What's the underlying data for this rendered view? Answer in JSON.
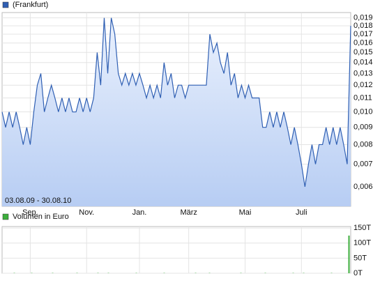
{
  "chart_data": [
    {
      "type": "area",
      "date_range": "03.08.09 - 30.08.10",
      "log_scale": true,
      "grid": true,
      "x": [
        0,
        1,
        2,
        3,
        4,
        5,
        6,
        7,
        8,
        9,
        10,
        11,
        12,
        13,
        14,
        15,
        16,
        17,
        18,
        19,
        20,
        21,
        22,
        23,
        24,
        25,
        26,
        27,
        28,
        29,
        30,
        31,
        32,
        33,
        34,
        35,
        36,
        37,
        38,
        39,
        40,
        41,
        42,
        43,
        44,
        45,
        46,
        47,
        48,
        49,
        50,
        51,
        52,
        53,
        54,
        55,
        56,
        57,
        58,
        59,
        60,
        61,
        62,
        63,
        64,
        65,
        66,
        67,
        68,
        69,
        70,
        71,
        72,
        73,
        74,
        75,
        76,
        77,
        78,
        79,
        80,
        81,
        82,
        83,
        84,
        85,
        86,
        87,
        88,
        89,
        90,
        91,
        92,
        93,
        94,
        95,
        96,
        97,
        98,
        99
      ],
      "xlim": [
        0,
        99
      ],
      "xticks": [
        {
          "value": 8,
          "label": "Sep."
        },
        {
          "value": 24,
          "label": "Nov."
        },
        {
          "value": 39,
          "label": "Jan."
        },
        {
          "value": 53,
          "label": "März"
        },
        {
          "value": 69,
          "label": "Mai"
        },
        {
          "value": 85,
          "label": "Juli"
        }
      ],
      "ylim": [
        0.00525,
        0.0197
      ],
      "yticks": [
        {
          "value": 0.006,
          "label": "0,006"
        },
        {
          "value": 0.007,
          "label": "0,007"
        },
        {
          "value": 0.008,
          "label": "0,008"
        },
        {
          "value": 0.009,
          "label": "0,009"
        },
        {
          "value": 0.01,
          "label": "0,010"
        },
        {
          "value": 0.011,
          "label": "0,011"
        },
        {
          "value": 0.012,
          "label": "0,012"
        },
        {
          "value": 0.013,
          "label": "0,013"
        },
        {
          "value": 0.014,
          "label": "0,014"
        },
        {
          "value": 0.015,
          "label": "0,015"
        },
        {
          "value": 0.016,
          "label": "0,016"
        },
        {
          "value": 0.017,
          "label": "0,017"
        },
        {
          "value": 0.018,
          "label": "0,018"
        },
        {
          "value": 0.019,
          "label": "0,019"
        }
      ],
      "series": [
        {
          "name": "(Frankfurt)",
          "color": "#2f5fb3",
          "values": [
            0.01,
            0.009,
            0.01,
            0.009,
            0.01,
            0.009,
            0.008,
            0.009,
            0.008,
            0.01,
            0.012,
            0.013,
            0.01,
            0.011,
            0.012,
            0.011,
            0.01,
            0.011,
            0.01,
            0.011,
            0.01,
            0.01,
            0.011,
            0.01,
            0.011,
            0.01,
            0.011,
            0.015,
            0.012,
            0.019,
            0.013,
            0.019,
            0.017,
            0.013,
            0.012,
            0.013,
            0.012,
            0.013,
            0.012,
            0.013,
            0.012,
            0.011,
            0.012,
            0.011,
            0.012,
            0.011,
            0.014,
            0.012,
            0.013,
            0.011,
            0.012,
            0.012,
            0.011,
            0.012,
            0.012,
            0.012,
            0.012,
            0.012,
            0.012,
            0.017,
            0.015,
            0.016,
            0.014,
            0.013,
            0.015,
            0.012,
            0.013,
            0.011,
            0.012,
            0.011,
            0.012,
            0.011,
            0.011,
            0.011,
            0.009,
            0.009,
            0.01,
            0.009,
            0.01,
            0.009,
            0.01,
            0.009,
            0.008,
            0.009,
            0.008,
            0.007,
            0.006,
            0.007,
            0.008,
            0.007,
            0.008,
            0.008,
            0.009,
            0.008,
            0.009,
            0.008,
            0.009,
            0.008,
            0.007,
            0.018
          ]
        }
      ]
    },
    {
      "type": "bar",
      "grid": true,
      "xlim": [
        0,
        99
      ],
      "ylim": [
        0,
        155
      ],
      "yticks": [
        {
          "value": 0,
          "label": "0T"
        },
        {
          "value": 50,
          "label": "50T"
        },
        {
          "value": 100,
          "label": "100T"
        },
        {
          "value": 150,
          "label": "150T"
        }
      ],
      "series": [
        {
          "name": "Volumen in Euro",
          "color": "#3cae3c",
          "values": [
            0,
            0,
            0,
            1,
            0,
            0,
            0,
            0,
            1,
            0,
            0,
            0,
            0,
            0,
            1,
            0,
            0,
            0,
            0,
            0,
            0,
            1,
            0,
            0,
            0,
            0,
            0,
            1,
            0,
            0,
            1,
            0,
            0,
            0,
            0,
            0,
            0,
            0,
            1,
            0,
            0,
            0,
            0,
            0,
            0,
            0,
            1,
            0,
            0,
            0,
            0,
            0,
            0,
            0,
            0,
            1,
            0,
            0,
            0,
            1,
            0,
            0,
            0,
            0,
            0,
            0,
            0,
            0,
            1,
            0,
            0,
            0,
            0,
            0,
            0,
            1,
            0,
            0,
            0,
            0,
            0,
            0,
            0,
            1,
            0,
            0,
            1,
            0,
            0,
            0,
            0,
            0,
            0,
            0,
            1,
            0,
            0,
            0,
            0,
            125
          ]
        }
      ]
    }
  ]
}
